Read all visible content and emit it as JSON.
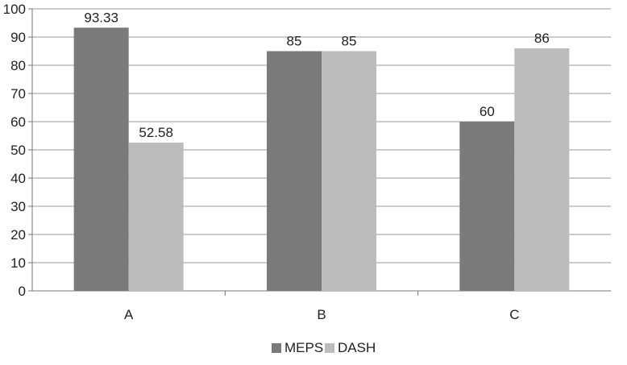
{
  "chart_data": {
    "type": "bar",
    "categories": [
      "A",
      "B",
      "C"
    ],
    "series": [
      {
        "name": "MEPS",
        "values": [
          93.33,
          85,
          60
        ],
        "color": "#7a7a7a"
      },
      {
        "name": "DASH",
        "values": [
          52.58,
          85,
          86
        ],
        "color": "#bcbcbc"
      }
    ],
    "data_labels": [
      [
        "93.33",
        "85",
        "60"
      ],
      [
        "52.58",
        "85",
        "86"
      ]
    ],
    "title": "",
    "xlabel": "",
    "ylabel": "",
    "ylim": [
      0,
      100
    ],
    "yticks": [
      0,
      10,
      20,
      30,
      40,
      50,
      60,
      70,
      80,
      90,
      100
    ],
    "grid": true,
    "legend_position": "bottom"
  }
}
